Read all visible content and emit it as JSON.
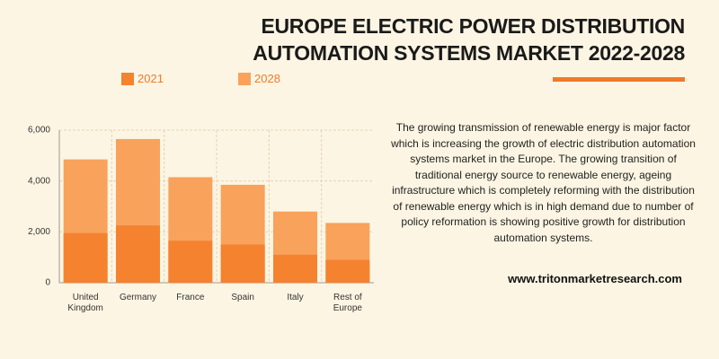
{
  "chart_data": {
    "type": "bar",
    "title": "EUROPE ELECTRIC POWER DISTRIBUTION AUTOMATION SYSTEMS MARKET 2022-2028",
    "categories": [
      "United Kingdom",
      "Germany",
      "France",
      "Spain",
      "Italy",
      "Rest of Europe"
    ],
    "series": [
      {
        "name": "2028",
        "color": "#f8a25c",
        "values": [
          4850,
          5650,
          4150,
          3850,
          2800,
          2350
        ]
      },
      {
        "name": "2021",
        "color": "#f5822f",
        "values": [
          1950,
          2250,
          1650,
          1500,
          1100,
          900
        ]
      }
    ],
    "ylim": [
      0,
      6000
    ],
    "yticks": [
      0,
      {
        "value": 2000,
        "label": "2,000"
      },
      {
        "value": 4000,
        "label": "4,000"
      },
      {
        "value": 6000,
        "label": "6,000"
      }
    ],
    "grid": true,
    "description": "The growing transmission of renewable energy is major factor which is increasing the growth of electric distribution automation systems market in the Europe. The growing transition of traditional energy source to renewable energy, ageing infrastructure which is completely reforming with the distribution of renewable energy which is in high demand due to number of policy reformation is showing positive growth for distribution automation systems.",
    "website": "www.tritonmarketresearch.com"
  }
}
